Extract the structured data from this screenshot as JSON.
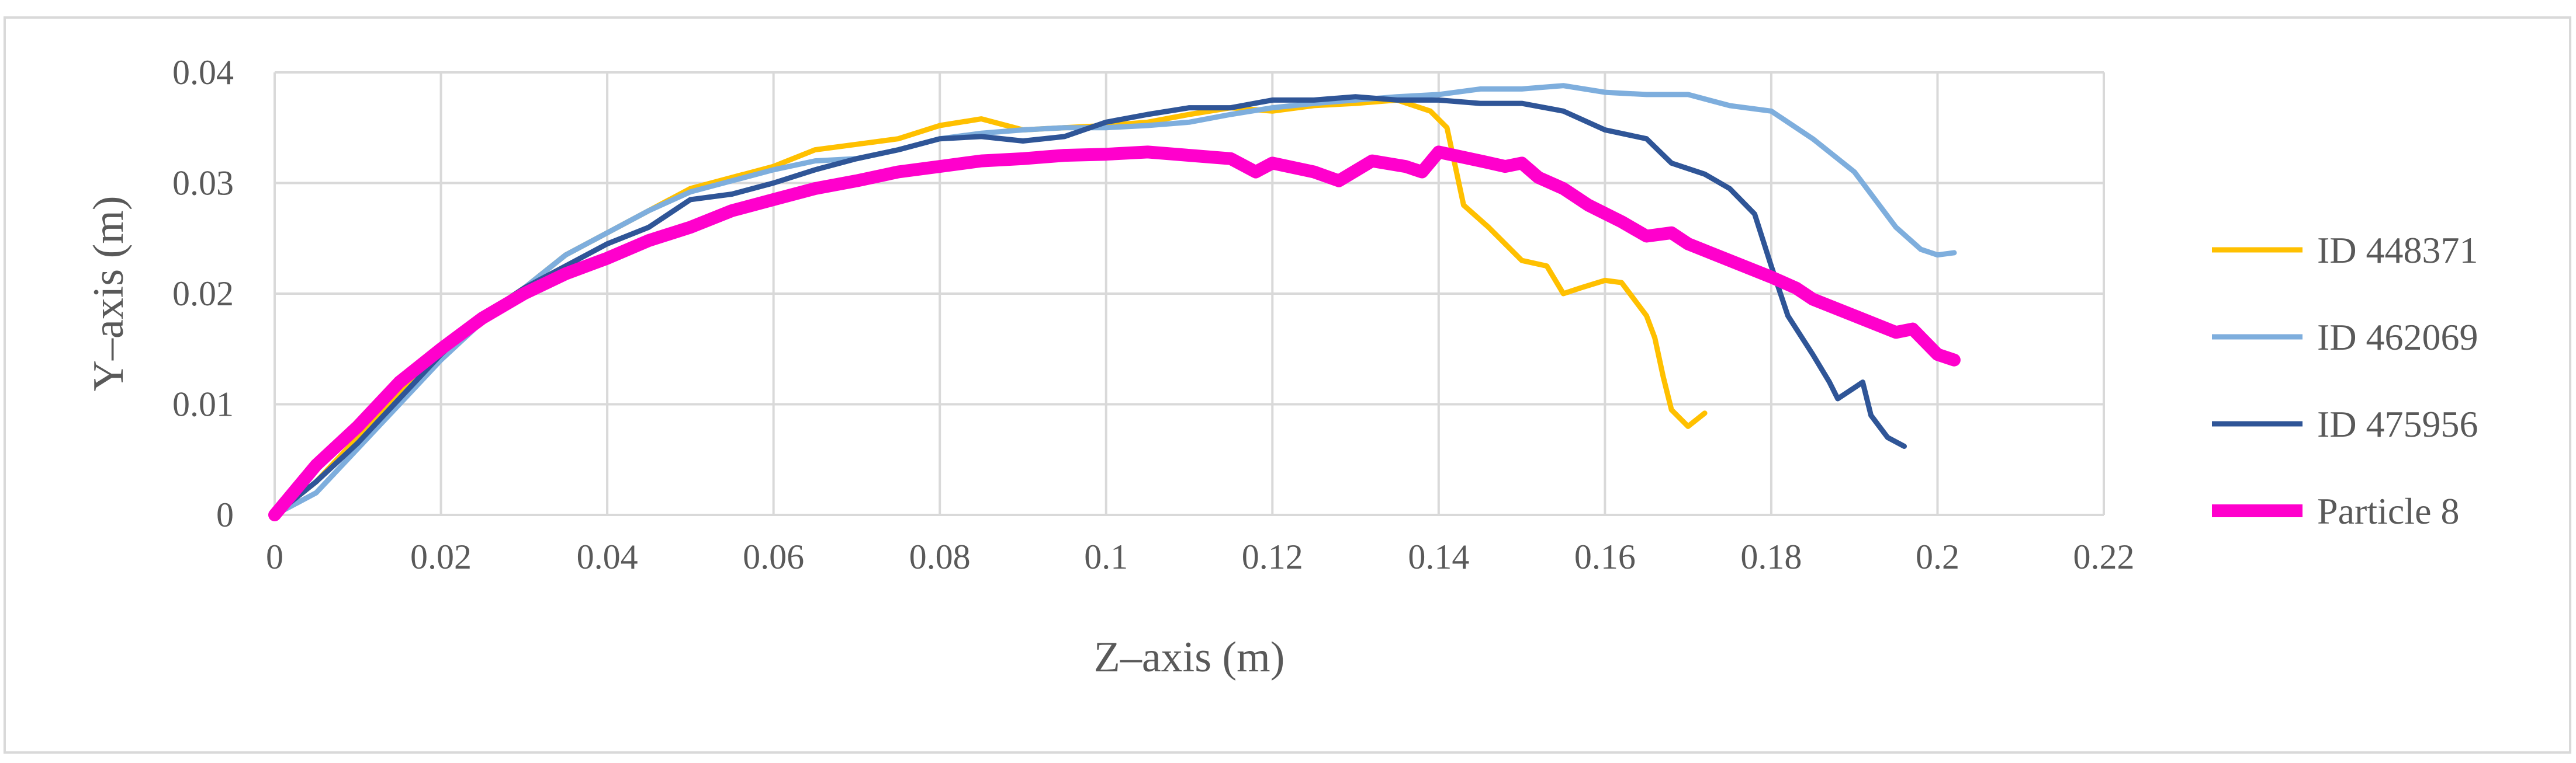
{
  "chart_data": {
    "type": "line",
    "title": "",
    "xlabel": "Z–axis (m)",
    "ylabel": "Y–axis  (m)",
    "xlim": [
      0,
      0.22
    ],
    "ylim": [
      0,
      0.04
    ],
    "x_ticks": [
      0,
      0.02,
      0.04,
      0.06,
      0.08,
      0.1,
      0.12,
      0.14,
      0.16,
      0.18,
      0.2,
      0.22
    ],
    "y_ticks": [
      0,
      0.01,
      0.02,
      0.03,
      0.04
    ],
    "x_tick_labels": [
      "0",
      "0.02",
      "0.04",
      "0.06",
      "0.08",
      "0.1",
      "0.12",
      "0.14",
      "0.16",
      "0.18",
      "0.2",
      "0.22"
    ],
    "y_tick_labels": [
      "0",
      "0.01",
      "0.02",
      "0.03",
      "0.04"
    ],
    "grid": true,
    "legend_position": "right",
    "series": [
      {
        "name": "ID 448371",
        "color": "#ffc000",
        "points": [
          [
            0,
            0
          ],
          [
            0.005,
            0.003
          ],
          [
            0.01,
            0.007
          ],
          [
            0.015,
            0.011
          ],
          [
            0.02,
            0.015
          ],
          [
            0.025,
            0.018
          ],
          [
            0.03,
            0.0205
          ],
          [
            0.035,
            0.0235
          ],
          [
            0.04,
            0.0255
          ],
          [
            0.045,
            0.0275
          ],
          [
            0.05,
            0.0295
          ],
          [
            0.055,
            0.0305
          ],
          [
            0.06,
            0.0315
          ],
          [
            0.065,
            0.033
          ],
          [
            0.07,
            0.0335
          ],
          [
            0.075,
            0.034
          ],
          [
            0.08,
            0.0352
          ],
          [
            0.085,
            0.0358
          ],
          [
            0.09,
            0.0348
          ],
          [
            0.095,
            0.035
          ],
          [
            0.1,
            0.0352
          ],
          [
            0.105,
            0.0355
          ],
          [
            0.11,
            0.0362
          ],
          [
            0.115,
            0.0368
          ],
          [
            0.12,
            0.0365
          ],
          [
            0.125,
            0.037
          ],
          [
            0.13,
            0.0372
          ],
          [
            0.135,
            0.0375
          ],
          [
            0.139,
            0.0365
          ],
          [
            0.141,
            0.035
          ],
          [
            0.142,
            0.0315
          ],
          [
            0.143,
            0.028
          ],
          [
            0.146,
            0.026
          ],
          [
            0.148,
            0.0245
          ],
          [
            0.15,
            0.023
          ],
          [
            0.153,
            0.0225
          ],
          [
            0.155,
            0.02
          ],
          [
            0.157,
            0.0205
          ],
          [
            0.16,
            0.0212
          ],
          [
            0.162,
            0.021
          ],
          [
            0.163,
            0.02
          ],
          [
            0.165,
            0.018
          ],
          [
            0.166,
            0.016
          ],
          [
            0.167,
            0.0125
          ],
          [
            0.168,
            0.0095
          ],
          [
            0.17,
            0.008
          ],
          [
            0.172,
            0.0092
          ]
        ]
      },
      {
        "name": "ID 462069",
        "color": "#7eaedd",
        "points": [
          [
            0,
            0
          ],
          [
            0.005,
            0.002
          ],
          [
            0.01,
            0.006
          ],
          [
            0.015,
            0.01
          ],
          [
            0.02,
            0.014
          ],
          [
            0.025,
            0.0175
          ],
          [
            0.03,
            0.0205
          ],
          [
            0.035,
            0.0235
          ],
          [
            0.04,
            0.0255
          ],
          [
            0.045,
            0.0275
          ],
          [
            0.05,
            0.0292
          ],
          [
            0.055,
            0.0302
          ],
          [
            0.06,
            0.0312
          ],
          [
            0.065,
            0.032
          ],
          [
            0.07,
            0.0322
          ],
          [
            0.075,
            0.033
          ],
          [
            0.08,
            0.034
          ],
          [
            0.085,
            0.0345
          ],
          [
            0.09,
            0.0348
          ],
          [
            0.095,
            0.035
          ],
          [
            0.1,
            0.035
          ],
          [
            0.105,
            0.0352
          ],
          [
            0.11,
            0.0355
          ],
          [
            0.115,
            0.0362
          ],
          [
            0.12,
            0.0368
          ],
          [
            0.125,
            0.0372
          ],
          [
            0.13,
            0.0375
          ],
          [
            0.135,
            0.0378
          ],
          [
            0.14,
            0.038
          ],
          [
            0.145,
            0.0385
          ],
          [
            0.15,
            0.0385
          ],
          [
            0.155,
            0.0388
          ],
          [
            0.16,
            0.0382
          ],
          [
            0.165,
            0.038
          ],
          [
            0.17,
            0.038
          ],
          [
            0.175,
            0.037
          ],
          [
            0.18,
            0.0365
          ],
          [
            0.185,
            0.034
          ],
          [
            0.19,
            0.031
          ],
          [
            0.195,
            0.026
          ],
          [
            0.198,
            0.024
          ],
          [
            0.2,
            0.0235
          ],
          [
            0.202,
            0.0237
          ]
        ]
      },
      {
        "name": "ID 475956",
        "color": "#2f5597",
        "points": [
          [
            0,
            0
          ],
          [
            0.005,
            0.003
          ],
          [
            0.01,
            0.0065
          ],
          [
            0.015,
            0.0105
          ],
          [
            0.02,
            0.0145
          ],
          [
            0.025,
            0.018
          ],
          [
            0.03,
            0.0205
          ],
          [
            0.035,
            0.0225
          ],
          [
            0.04,
            0.0245
          ],
          [
            0.045,
            0.026
          ],
          [
            0.05,
            0.0285
          ],
          [
            0.055,
            0.029
          ],
          [
            0.06,
            0.03
          ],
          [
            0.065,
            0.0312
          ],
          [
            0.07,
            0.0322
          ],
          [
            0.075,
            0.033
          ],
          [
            0.08,
            0.034
          ],
          [
            0.085,
            0.0342
          ],
          [
            0.09,
            0.0338
          ],
          [
            0.095,
            0.0342
          ],
          [
            0.1,
            0.0355
          ],
          [
            0.105,
            0.0362
          ],
          [
            0.11,
            0.0368
          ],
          [
            0.115,
            0.0368
          ],
          [
            0.12,
            0.0375
          ],
          [
            0.125,
            0.0375
          ],
          [
            0.13,
            0.0378
          ],
          [
            0.135,
            0.0375
          ],
          [
            0.14,
            0.0375
          ],
          [
            0.145,
            0.0372
          ],
          [
            0.15,
            0.0372
          ],
          [
            0.155,
            0.0365
          ],
          [
            0.16,
            0.0348
          ],
          [
            0.165,
            0.034
          ],
          [
            0.168,
            0.0318
          ],
          [
            0.172,
            0.0308
          ],
          [
            0.175,
            0.0295
          ],
          [
            0.178,
            0.0272
          ],
          [
            0.18,
            0.0225
          ],
          [
            0.182,
            0.018
          ],
          [
            0.185,
            0.0145
          ],
          [
            0.187,
            0.012
          ],
          [
            0.188,
            0.0105
          ],
          [
            0.19,
            0.0115
          ],
          [
            0.191,
            0.012
          ],
          [
            0.192,
            0.009
          ],
          [
            0.194,
            0.007
          ],
          [
            0.196,
            0.0062
          ]
        ]
      },
      {
        "name": "Particle 8",
        "color": "#ff00cc",
        "points": [
          [
            0,
            0
          ],
          [
            0.005,
            0.0045
          ],
          [
            0.01,
            0.008
          ],
          [
            0.015,
            0.012
          ],
          [
            0.02,
            0.015
          ],
          [
            0.025,
            0.0178
          ],
          [
            0.03,
            0.02
          ],
          [
            0.035,
            0.0218
          ],
          [
            0.04,
            0.0232
          ],
          [
            0.045,
            0.0248
          ],
          [
            0.05,
            0.026
          ],
          [
            0.055,
            0.0275
          ],
          [
            0.06,
            0.0285
          ],
          [
            0.065,
            0.0295
          ],
          [
            0.07,
            0.0302
          ],
          [
            0.075,
            0.031
          ],
          [
            0.08,
            0.0315
          ],
          [
            0.085,
            0.032
          ],
          [
            0.09,
            0.0322
          ],
          [
            0.095,
            0.0325
          ],
          [
            0.1,
            0.0326
          ],
          [
            0.105,
            0.0328
          ],
          [
            0.11,
            0.0325
          ],
          [
            0.115,
            0.0322
          ],
          [
            0.118,
            0.031
          ],
          [
            0.12,
            0.0318
          ],
          [
            0.125,
            0.031
          ],
          [
            0.128,
            0.0302
          ],
          [
            0.132,
            0.032
          ],
          [
            0.136,
            0.0315
          ],
          [
            0.138,
            0.031
          ],
          [
            0.14,
            0.0328
          ],
          [
            0.145,
            0.032
          ],
          [
            0.148,
            0.0315
          ],
          [
            0.15,
            0.0318
          ],
          [
            0.152,
            0.0305
          ],
          [
            0.155,
            0.0295
          ],
          [
            0.158,
            0.028
          ],
          [
            0.162,
            0.0265
          ],
          [
            0.165,
            0.0252
          ],
          [
            0.168,
            0.0255
          ],
          [
            0.17,
            0.0245
          ],
          [
            0.175,
            0.023
          ],
          [
            0.18,
            0.0215
          ],
          [
            0.183,
            0.0205
          ],
          [
            0.185,
            0.0195
          ],
          [
            0.19,
            0.018
          ],
          [
            0.195,
            0.0165
          ],
          [
            0.197,
            0.0168
          ],
          [
            0.2,
            0.0145
          ],
          [
            0.202,
            0.014
          ]
        ]
      }
    ]
  }
}
